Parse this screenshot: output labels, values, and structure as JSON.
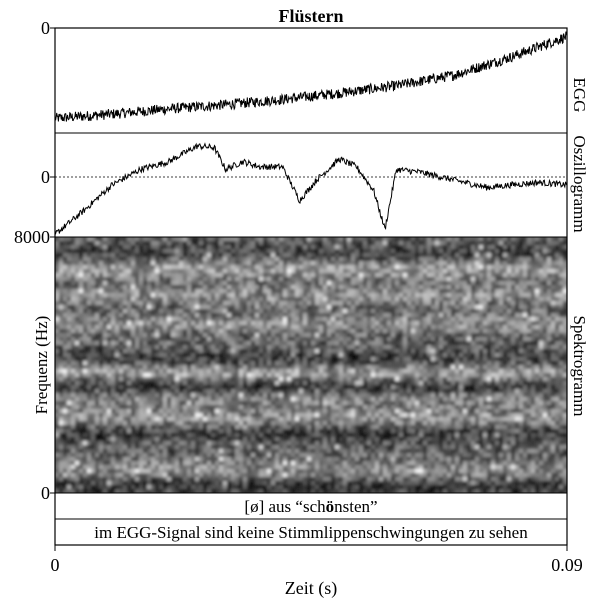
{
  "chart_data": {
    "type": "line",
    "title": "Flüstern",
    "xlabel": "Zeit (s)",
    "xlim": [
      0,
      0.09
    ],
    "x_ticks": [
      "0",
      "0.09"
    ],
    "panels": [
      {
        "id": "egg",
        "label": "EGG",
        "zero_label": "0",
        "series": {
          "x": [
            0,
            0.01,
            0.02,
            0.03,
            0.04,
            0.05,
            0.06,
            0.07,
            0.08,
            0.09
          ],
          "y": [
            -0.86,
            -0.82,
            -0.77,
            -0.73,
            -0.68,
            -0.62,
            -0.55,
            -0.45,
            -0.28,
            -0.08
          ],
          "noise": 0.05
        },
        "ylim": [
          -1,
          0
        ]
      },
      {
        "id": "oscillogram",
        "label": "Oszillogramm",
        "zero_label": "0",
        "series": {
          "x": [
            0,
            0.005,
            0.01,
            0.015,
            0.02,
            0.025,
            0.028,
            0.03,
            0.033,
            0.036,
            0.04,
            0.043,
            0.046,
            0.05,
            0.053,
            0.056,
            0.058,
            0.06,
            0.064,
            0.068,
            0.072,
            0.076,
            0.08,
            0.085,
            0.09
          ],
          "y": [
            -0.95,
            -0.5,
            0.0,
            0.3,
            0.45,
            0.75,
            0.72,
            0.3,
            0.45,
            0.35,
            0.35,
            -0.3,
            0.1,
            0.5,
            0.35,
            -0.1,
            -0.85,
            0.3,
            0.25,
            0.15,
            0.05,
            -0.05,
            0.0,
            0.05,
            0.0
          ],
          "noise": 0.06
        },
        "ylim": [
          -1,
          1
        ]
      },
      {
        "id": "spectrogram",
        "label": "Spektrogramm",
        "ylabel": "Frequenz (Hz)",
        "y_ticks": [
          "0",
          "8000"
        ],
        "ylim": [
          0,
          8000
        ]
      }
    ],
    "tiers": [
      {
        "id": "phone",
        "parts": [
          "[ø] aus “sch",
          "ö",
          "nsten”"
        ]
      },
      {
        "id": "comment",
        "text": "im EGG-Signal sind keine Stimmlippenschwingungen zu sehen"
      }
    ]
  }
}
